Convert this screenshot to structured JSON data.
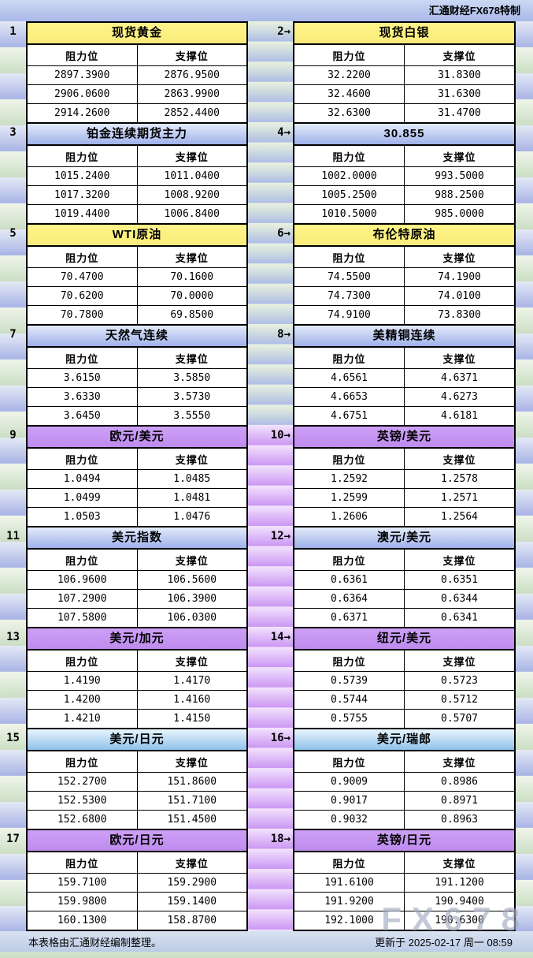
{
  "header": {
    "brand": "汇通财经FX678特制"
  },
  "labels": {
    "resistance": "阻力位",
    "support": "支撑位"
  },
  "misc": {
    "arrow": "→",
    "watermark": "FX678"
  },
  "colors": {
    "title": {
      "yellow": [
        "#FEF489",
        "#F9EC7C"
      ],
      "blue": [
        "#E3EBFA",
        "#9FB1EA"
      ],
      "purple": [
        "#CDA0F5",
        "#BE8BEE"
      ],
      "cyan": [
        "#E8F5FC",
        "#8FC2EA"
      ]
    },
    "stripe_blue": "#A9B4E6",
    "stripe_green": "#CBDEC5",
    "strip_purple": "#CB97F2",
    "border": "#000000"
  },
  "panels": [
    {
      "num": "1",
      "title": "现货黄金",
      "color": "yellow",
      "rows": [
        [
          "2897.3900",
          "2876.9500"
        ],
        [
          "2906.0600",
          "2863.9900"
        ],
        [
          "2914.2600",
          "2852.4400"
        ]
      ]
    },
    {
      "num": "2",
      "title": "现货白银",
      "color": "yellow",
      "rows": [
        [
          "32.2200",
          "31.8300"
        ],
        [
          "32.4600",
          "31.6300"
        ],
        [
          "32.6300",
          "31.4700"
        ]
      ]
    },
    {
      "num": "3",
      "title": "铂金连续期货主力",
      "color": "blue",
      "rows": [
        [
          "1015.2400",
          "1011.0400"
        ],
        [
          "1017.3200",
          "1008.9200"
        ],
        [
          "1019.4400",
          "1006.8400"
        ]
      ]
    },
    {
      "num": "4",
      "title": "30.855",
      "color": "blue",
      "rows": [
        [
          "1002.0000",
          "993.5000"
        ],
        [
          "1005.2500",
          "988.2500"
        ],
        [
          "1010.5000",
          "985.0000"
        ]
      ]
    },
    {
      "num": "5",
      "title": "WTI原油",
      "color": "yellow",
      "rows": [
        [
          "70.4700",
          "70.1600"
        ],
        [
          "70.6200",
          "70.0000"
        ],
        [
          "70.7800",
          "69.8500"
        ]
      ]
    },
    {
      "num": "6",
      "title": "布伦特原油",
      "color": "yellow",
      "rows": [
        [
          "74.5500",
          "74.1900"
        ],
        [
          "74.7300",
          "74.0100"
        ],
        [
          "74.9100",
          "73.8300"
        ]
      ]
    },
    {
      "num": "7",
      "title": "天然气连续",
      "color": "blue",
      "rows": [
        [
          "3.6150",
          "3.5850"
        ],
        [
          "3.6330",
          "3.5730"
        ],
        [
          "3.6450",
          "3.5550"
        ]
      ]
    },
    {
      "num": "8",
      "title": "美精铜连续",
      "color": "blue",
      "rows": [
        [
          "4.6561",
          "4.6371"
        ],
        [
          "4.6653",
          "4.6273"
        ],
        [
          "4.6751",
          "4.6181"
        ]
      ]
    },
    {
      "num": "9",
      "title": "欧元/美元",
      "color": "purple",
      "rows": [
        [
          "1.0494",
          "1.0485"
        ],
        [
          "1.0499",
          "1.0481"
        ],
        [
          "1.0503",
          "1.0476"
        ]
      ]
    },
    {
      "num": "10",
      "title": "英镑/美元",
      "color": "purple",
      "rows": [
        [
          "1.2592",
          "1.2578"
        ],
        [
          "1.2599",
          "1.2571"
        ],
        [
          "1.2606",
          "1.2564"
        ]
      ]
    },
    {
      "num": "11",
      "title": "美元指数",
      "color": "blue",
      "rows": [
        [
          "106.9600",
          "106.5600"
        ],
        [
          "107.2900",
          "106.3900"
        ],
        [
          "107.5800",
          "106.0300"
        ]
      ]
    },
    {
      "num": "12",
      "title": "澳元/美元",
      "color": "blue",
      "rows": [
        [
          "0.6361",
          "0.6351"
        ],
        [
          "0.6364",
          "0.6344"
        ],
        [
          "0.6371",
          "0.6341"
        ]
      ]
    },
    {
      "num": "13",
      "title": "美元/加元",
      "color": "purple",
      "rows": [
        [
          "1.4190",
          "1.4170"
        ],
        [
          "1.4200",
          "1.4160"
        ],
        [
          "1.4210",
          "1.4150"
        ]
      ]
    },
    {
      "num": "14",
      "title": "纽元/美元",
      "color": "purple",
      "rows": [
        [
          "0.5739",
          "0.5723"
        ],
        [
          "0.5744",
          "0.5712"
        ],
        [
          "0.5755",
          "0.5707"
        ]
      ]
    },
    {
      "num": "15",
      "title": "美元/日元",
      "color": "cyan",
      "rows": [
        [
          "152.2700",
          "151.8600"
        ],
        [
          "152.5300",
          "151.7100"
        ],
        [
          "152.6800",
          "151.4500"
        ]
      ]
    },
    {
      "num": "16",
      "title": "美元/瑞郎",
      "color": "cyan",
      "rows": [
        [
          "0.9009",
          "0.8986"
        ],
        [
          "0.9017",
          "0.8971"
        ],
        [
          "0.9032",
          "0.8963"
        ]
      ]
    },
    {
      "num": "17",
      "title": "欧元/日元",
      "color": "purple",
      "rows": [
        [
          "159.7100",
          "159.2900"
        ],
        [
          "159.9800",
          "159.1400"
        ],
        [
          "160.1300",
          "158.8700"
        ]
      ]
    },
    {
      "num": "18",
      "title": "英镑/日元",
      "color": "purple",
      "rows": [
        [
          "191.6100",
          "191.1200"
        ],
        [
          "191.9200",
          "190.9400"
        ],
        [
          "192.1000",
          "190.6300"
        ]
      ]
    }
  ],
  "footer": {
    "left": "本表格由汇通财经编制整理。",
    "right": "更新于 2025-02-17 周一 08:59"
  }
}
